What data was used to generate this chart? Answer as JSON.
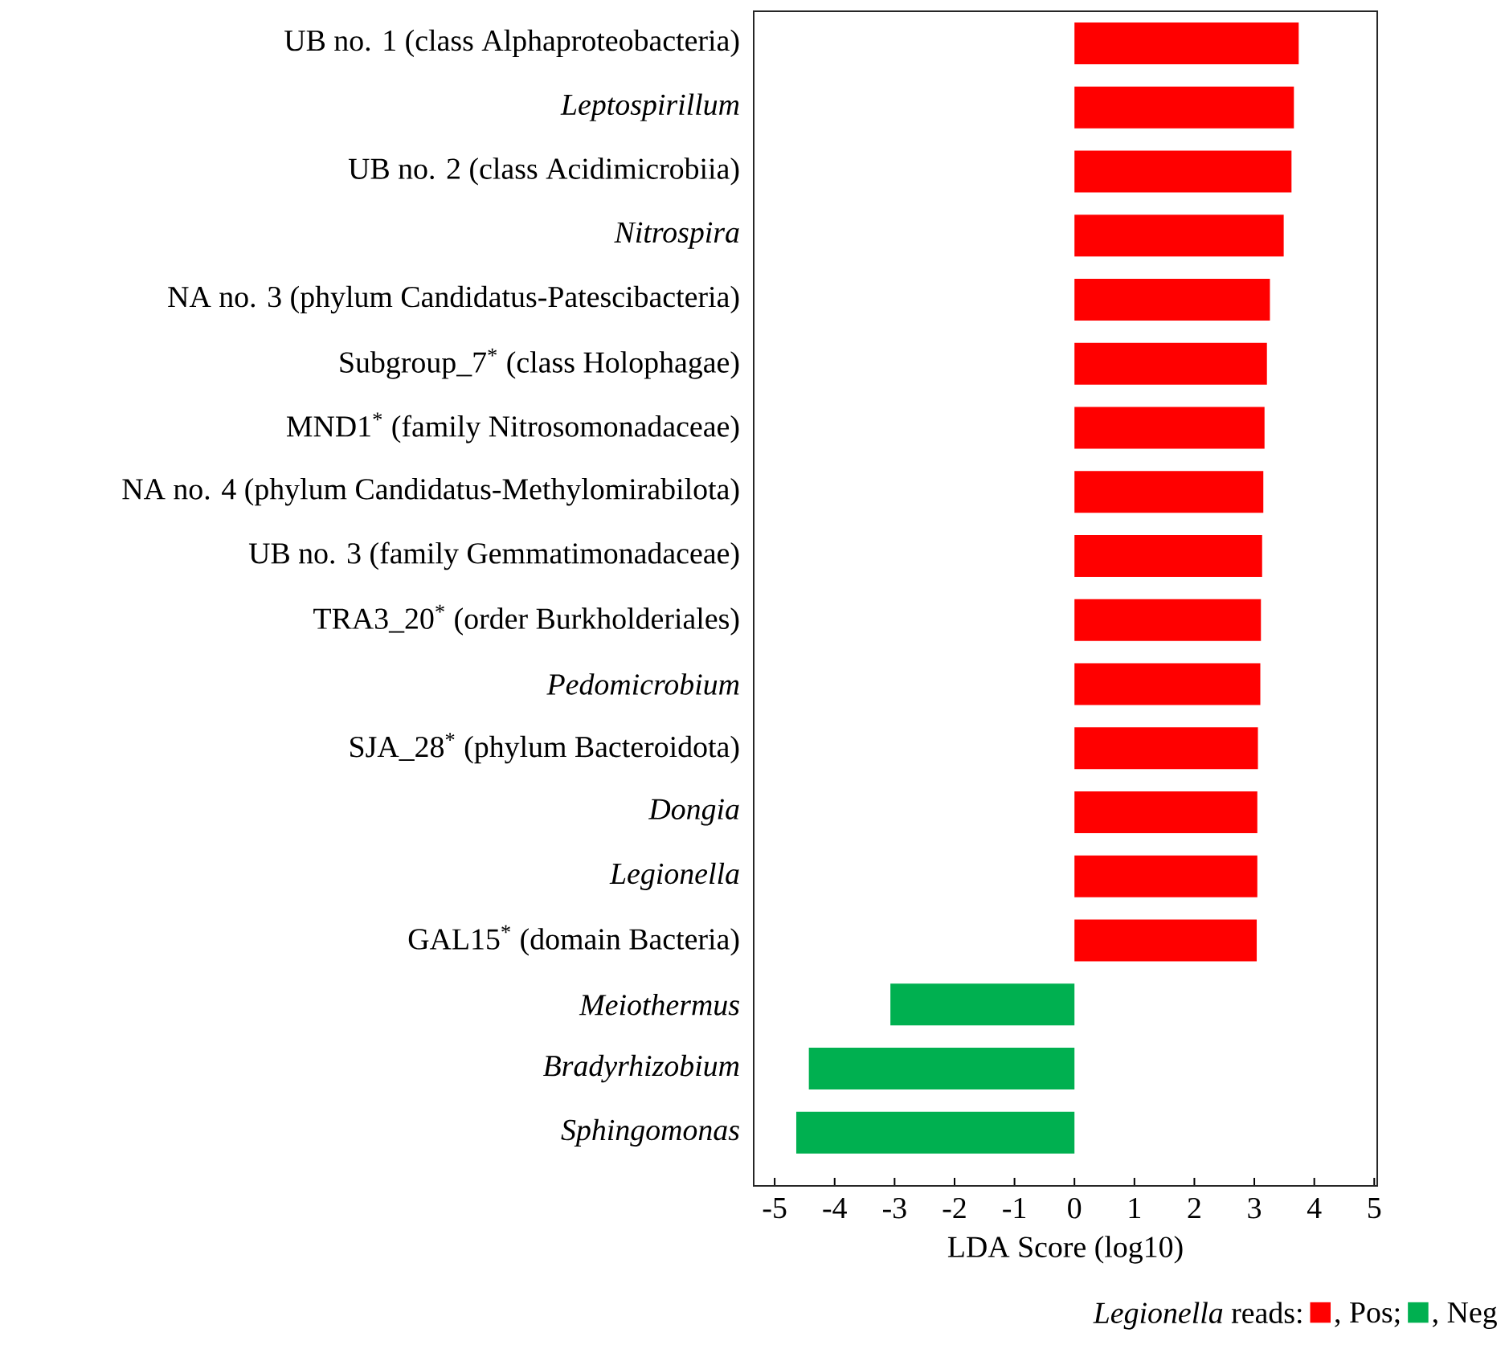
{
  "chart_data": {
    "type": "bar",
    "orientation": "horizontal",
    "categories": [
      "UB no. 1 (class Alphaproteobacteria)",
      "*Leptospirillum*",
      "UB no. 2 (class Acidimicrobiia)",
      "*Nitrospira*",
      "NA no. 3 (phylum Candidatus-Patescibacteria)",
      "Subgroup_7$^{*}$ (class Holophagae)",
      "MND1$^{*}$ (family Nitrosomonadaceae)",
      "NA no. 4 (phylum Candidatus-Methylomirabilota)",
      "UB no. 3 (family Gemmatimonadaceae)",
      "TRA3_20$^{*}$ (order Burkholderiales)",
      "*Pedomicrobium*",
      "SJA_28$^{*}$ (phylum Bacteroidota)",
      "*Dongia*",
      "*Legionella*",
      "GAL15$^{*}$ (domain Bacteria)",
      "*Meiothermus*",
      "*Bradyrhizobium*",
      "*Sphingomonas*"
    ],
    "series": [
      {
        "name": ", Pos;",
        "color": "#ff0000",
        "values": [
          3.74,
          3.66,
          3.62,
          3.49,
          3.26,
          3.21,
          3.17,
          3.15,
          3.13,
          3.11,
          3.1,
          3.06,
          3.05,
          3.05,
          3.04,
          null,
          null,
          null
        ]
      },
      {
        "name": ", Neg",
        "color": "#00b050",
        "values": [
          null,
          null,
          null,
          null,
          null,
          null,
          null,
          null,
          null,
          null,
          null,
          null,
          null,
          null,
          null,
          -3.07,
          -4.43,
          -4.64
        ]
      }
    ],
    "xlabel": "LDA Score (log10)",
    "legend_title": "*Legionella* reads:",
    "legend": "bottom right",
    "xlim": [
      -5.35,
      5.05
    ],
    "xticks": [
      -5,
      -4,
      -3,
      -2,
      -1,
      0,
      1,
      2,
      3,
      4,
      5
    ]
  }
}
